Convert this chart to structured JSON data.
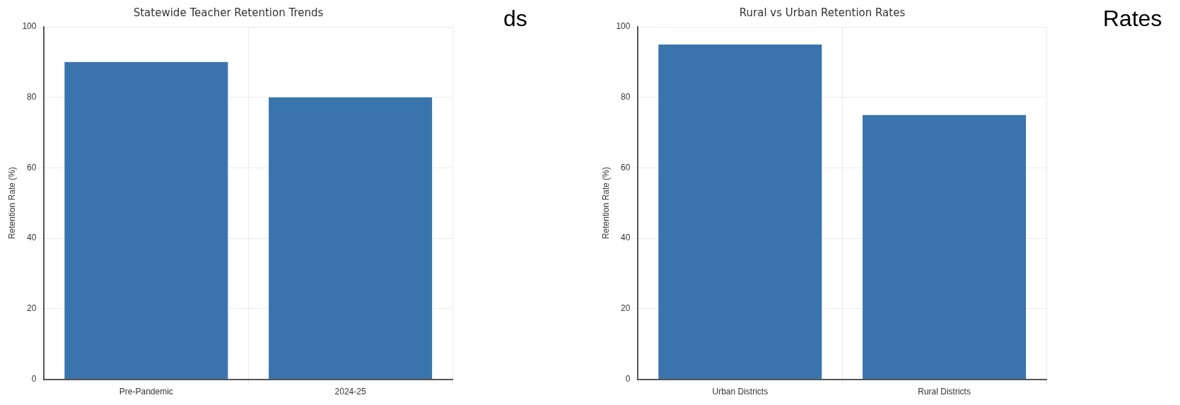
{
  "chart_data": [
    {
      "type": "bar",
      "title": "Statewide Teacher Retention Trends",
      "ylabel": "Retention Rate (%)",
      "categories": [
        "Pre-Pandemic",
        "2024-25"
      ],
      "values": [
        90,
        80
      ],
      "color": "#3a74ad",
      "ylim": [
        0,
        100
      ],
      "yticks": [
        0,
        20,
        40,
        60,
        80,
        100
      ],
      "grid": true,
      "annotations": [
        "ds"
      ]
    },
    {
      "type": "bar",
      "title": "Rural vs Urban Retention Rates",
      "ylabel": "Retention Rate (%)",
      "categories": [
        "Urban Districts",
        "Rural Districts"
      ],
      "values": [
        95,
        75
      ],
      "color": "#3a74ad",
      "ylim": [
        0,
        100
      ],
      "yticks": [
        0,
        20,
        40,
        60,
        80,
        100
      ],
      "grid": true,
      "annotations": [
        "Rates"
      ]
    }
  ]
}
